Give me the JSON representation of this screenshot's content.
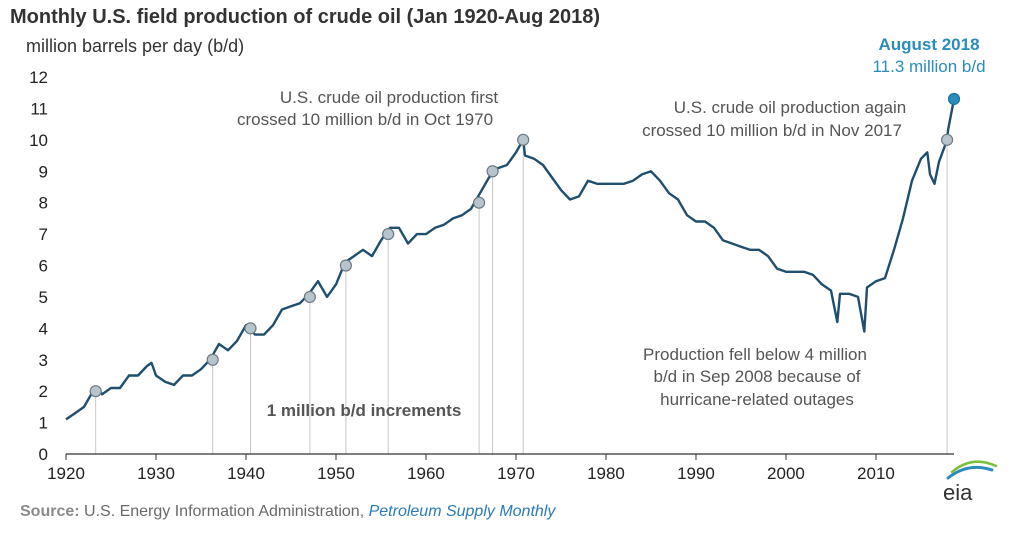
{
  "title": "Monthly U.S. field production of crude oil (Jan 1920-Aug 2018)",
  "units_label": "million barrels  per day (b/d)",
  "source": {
    "label": "Source:",
    "text": " U.S. Energy Information Administration, ",
    "publication": "Petroleum Supply Monthly"
  },
  "logo": {
    "text": "eia"
  },
  "colors": {
    "line": "#1f4e6e",
    "marker": "#b8c4cc",
    "highlight": "#2b8cbe",
    "guide": "#c8c8c8"
  },
  "annotations": {
    "first_10": [
      "U.S. crude oil production first",
      "crossed 10 million b/d in Oct 1970"
    ],
    "again_10": [
      "U.S. crude oil production again",
      "crossed 10 million b/d in Nov 2017"
    ],
    "fell_below": [
      "Production fell below 4 million",
      "b/d in Sep 2008 because of",
      "hurricane-related outages"
    ],
    "increments": "1 million b/d increments",
    "latest_label": "August 2018",
    "latest_value": "11.3 million b/d"
  },
  "chart_data": {
    "type": "line",
    "title": "Monthly U.S. field production of crude oil (Jan 1920-Aug 2018)",
    "ylabel": "million barrels  per day (b/d)",
    "xlim": [
      1920,
      2018.67
    ],
    "ylim": [
      0,
      12
    ],
    "x_ticks": [
      1920,
      1930,
      1940,
      1950,
      1960,
      1970,
      1980,
      1990,
      2000,
      2010
    ],
    "x_tick_labels": [
      "1920",
      "1930",
      "1940",
      "1950",
      "1960",
      "1970",
      "1980",
      "1990",
      "2000",
      "2010"
    ],
    "y_ticks": [
      0,
      1,
      2,
      3,
      4,
      5,
      6,
      7,
      8,
      9,
      10,
      11,
      12
    ],
    "y_tick_labels": [
      "0",
      "1",
      "2",
      "3",
      "4",
      "5",
      "6",
      "7",
      "8",
      "9",
      "10",
      "11",
      "12"
    ],
    "grid": false,
    "series": [
      {
        "x": [
          1920,
          1921,
          1922,
          1923,
          1923.5,
          1924,
          1925,
          1926,
          1927,
          1928,
          1929,
          1929.5,
          1930,
          1931,
          1932,
          1933,
          1934,
          1935,
          1936,
          1937,
          1938,
          1939,
          1940,
          1941,
          1942,
          1943,
          1944,
          1945,
          1946,
          1947,
          1948,
          1949,
          1950,
          1951,
          1952,
          1953,
          1954,
          1955,
          1956,
          1957,
          1958,
          1959,
          1960,
          1961,
          1962,
          1963,
          1964,
          1965,
          1966,
          1967,
          1968,
          1969,
          1970,
          1970.8,
          1971,
          1972,
          1973,
          1974,
          1975,
          1976,
          1977,
          1978,
          1979,
          1980,
          1981,
          1982,
          1983,
          1984,
          1985,
          1986,
          1987,
          1988,
          1989,
          1990,
          1991,
          1992,
          1993,
          1994,
          1995,
          1996,
          1997,
          1998,
          1999,
          2000,
          2001,
          2002,
          2003,
          2004,
          2005,
          2005.7,
          2006,
          2007,
          2008,
          2008.7,
          2009,
          2010,
          2011,
          2012,
          2013,
          2014,
          2015,
          2015.7,
          2016,
          2016.5,
          2017,
          2017.9,
          2018,
          2018.67
        ],
        "y": [
          1.1,
          1.3,
          1.5,
          2.0,
          2.1,
          1.9,
          2.1,
          2.1,
          2.5,
          2.5,
          2.8,
          2.9,
          2.5,
          2.3,
          2.2,
          2.5,
          2.5,
          2.7,
          3.0,
          3.5,
          3.3,
          3.6,
          4.1,
          3.8,
          3.8,
          4.1,
          4.6,
          4.7,
          4.8,
          5.1,
          5.5,
          5.0,
          5.4,
          6.1,
          6.3,
          6.5,
          6.3,
          6.8,
          7.2,
          7.2,
          6.7,
          7.0,
          7.0,
          7.2,
          7.3,
          7.5,
          7.6,
          7.8,
          8.3,
          8.8,
          9.1,
          9.2,
          9.6,
          10.0,
          9.5,
          9.4,
          9.2,
          8.8,
          8.4,
          8.1,
          8.2,
          8.7,
          8.6,
          8.6,
          8.6,
          8.6,
          8.7,
          8.9,
          9.0,
          8.7,
          8.3,
          8.1,
          7.6,
          7.4,
          7.4,
          7.2,
          6.8,
          6.7,
          6.6,
          6.5,
          6.5,
          6.3,
          5.9,
          5.8,
          5.8,
          5.8,
          5.7,
          5.4,
          5.2,
          4.2,
          5.1,
          5.1,
          5.0,
          3.9,
          5.3,
          5.5,
          5.6,
          6.5,
          7.5,
          8.7,
          9.4,
          9.6,
          8.9,
          8.6,
          9.3,
          10.0,
          10.3,
          11.3
        ]
      }
    ],
    "markers": {
      "x": [
        1923.3,
        1936.3,
        1940.5,
        1947.1,
        1951.1,
        1955.8,
        1965.9,
        1967.4,
        1970.8,
        2017.9,
        2018.67
      ],
      "y": [
        2,
        3,
        4,
        5,
        6,
        7,
        8,
        9,
        10,
        10,
        11.3
      ]
    },
    "annotations": [
      "U.S. crude oil production first crossed 10 million b/d in Oct 1970",
      "U.S. crude oil production again crossed 10 million b/d in Nov 2017",
      "Production fell below 4 million b/d in Sep 2008 because of hurricane-related outages",
      "1 million b/d increments",
      "August 2018 11.3 million b/d"
    ]
  }
}
